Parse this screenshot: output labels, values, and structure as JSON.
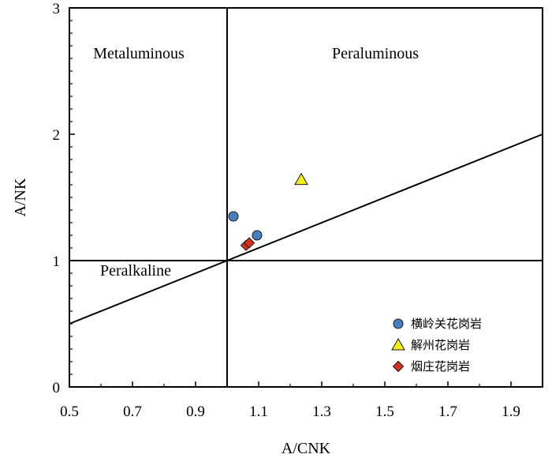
{
  "chart_data": {
    "type": "scatter",
    "xlabel": "A/CNK",
    "ylabel": "A/NK",
    "xlim": [
      0.5,
      2.0
    ],
    "ylim": [
      0,
      3
    ],
    "x_ticks": [
      0.5,
      0.7,
      0.9,
      1.1,
      1.3,
      1.5,
      1.7,
      1.9
    ],
    "x_tick_labels": [
      "0.5",
      "0.7",
      "0.9",
      "1.1",
      "1.3",
      "1.5",
      "1.7",
      "1.9"
    ],
    "y_ticks": [
      0,
      1,
      2,
      3
    ],
    "y_tick_labels": [
      "0",
      "1",
      "2",
      "3"
    ],
    "regions": [
      {
        "label": "Metaluminous",
        "x": 0.72,
        "y": 2.6
      },
      {
        "label": "Peraluminous",
        "x": 1.47,
        "y": 2.6
      },
      {
        "label": "Peralkaline",
        "x": 0.71,
        "y": 0.88
      }
    ],
    "reference_lines": [
      {
        "orientation": "vertical",
        "x": 1.0
      },
      {
        "orientation": "horizontal",
        "y": 1.0
      },
      {
        "orientation": "diagonal",
        "from": [
          0.5,
          0.5
        ],
        "to": [
          2.0,
          2.0
        ]
      }
    ],
    "series": [
      {
        "name": "横岭关花岗岩",
        "marker": "circle",
        "color": "#4a7ebf",
        "points": [
          {
            "x": 1.02,
            "y": 1.35
          },
          {
            "x": 1.095,
            "y": 1.2
          }
        ]
      },
      {
        "name": "解州花岗岩",
        "marker": "triangle",
        "color": "#f2ef1a",
        "points": [
          {
            "x": 1.235,
            "y": 1.64
          }
        ]
      },
      {
        "name": "烟庄花岗岩",
        "marker": "diamond",
        "color": "#d6301f",
        "points": [
          {
            "x": 1.06,
            "y": 1.12
          },
          {
            "x": 1.07,
            "y": 1.14
          }
        ]
      }
    ],
    "legend_position": "bottom-right",
    "grid": false
  }
}
